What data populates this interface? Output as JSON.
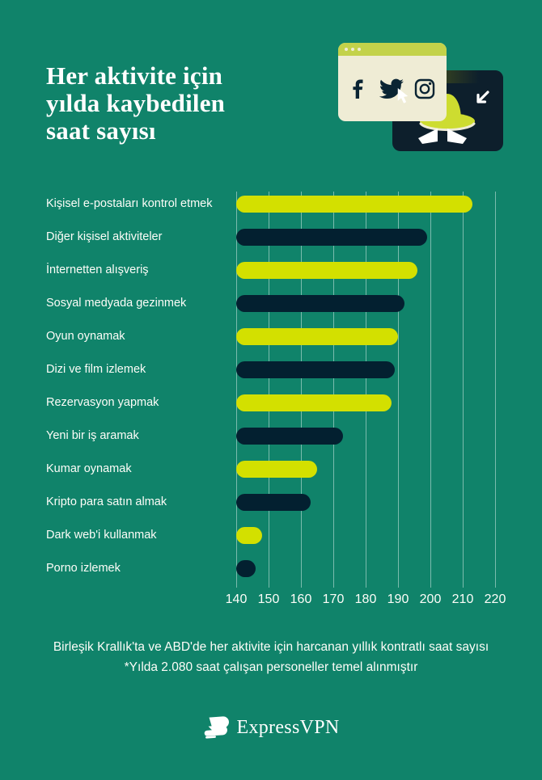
{
  "title": {
    "lines": [
      "Her aktivite için",
      "yılda kaybedilen",
      "saat sayısı"
    ]
  },
  "illustration": {
    "icon_names": [
      "facebook-icon",
      "twitter-icon",
      "instagram-icon",
      "cursor-icon",
      "arrow-icon",
      "spy-hat-icon",
      "spy-eyes-icon"
    ],
    "colors": {
      "window_body": "#EFECD5",
      "window_chrome": "#C3D24A",
      "card": "#0D1F2C",
      "card_top_strip": "#5A6322",
      "hat": "#CDDC30",
      "eyes": "#FFFFFF",
      "icon_ink": "#0A2433"
    }
  },
  "chart_data": {
    "type": "bar",
    "orientation": "horizontal",
    "title": "Her aktivite için yılda kaybedilen saat sayısı",
    "categories": [
      "Kişisel e-postaları kontrol etmek",
      "Diğer kişisel aktiviteler",
      "İnternetten alışveriş",
      "Sosyal medyada gezinmek",
      "Oyun oynamak",
      "Dizi ve film izlemek",
      "Rezervasyon yapmak",
      "Yeni bir iş aramak",
      "Kumar oynamak",
      "Kripto para satın almak",
      "Dark web'i kullanmak",
      "Porno izlemek"
    ],
    "values": [
      213,
      199,
      196,
      192,
      190,
      189,
      188,
      173,
      165,
      163,
      148,
      146
    ],
    "x_ticks": [
      140,
      150,
      160,
      170,
      180,
      190,
      200,
      210,
      220
    ],
    "xlim": [
      140,
      220
    ],
    "grid": true,
    "legend_position": "none",
    "bar_color_odd_rows": "#D3E000",
    "bar_color_even_rows": "#032030"
  },
  "footer": {
    "line1": "Birleşik Krallık'ta ve ABD'de her aktivite için harcanan yıllık kontratlı saat sayısı",
    "line2": "*Yılda 2.080 saat çalışan personeller temel alınmıştır"
  },
  "logo": {
    "wordmark": "ExpressVPN"
  },
  "theme": {
    "background": "#10836A",
    "text": "#FFFFFF",
    "gridline": "rgba(255,255,255,0.45)"
  }
}
